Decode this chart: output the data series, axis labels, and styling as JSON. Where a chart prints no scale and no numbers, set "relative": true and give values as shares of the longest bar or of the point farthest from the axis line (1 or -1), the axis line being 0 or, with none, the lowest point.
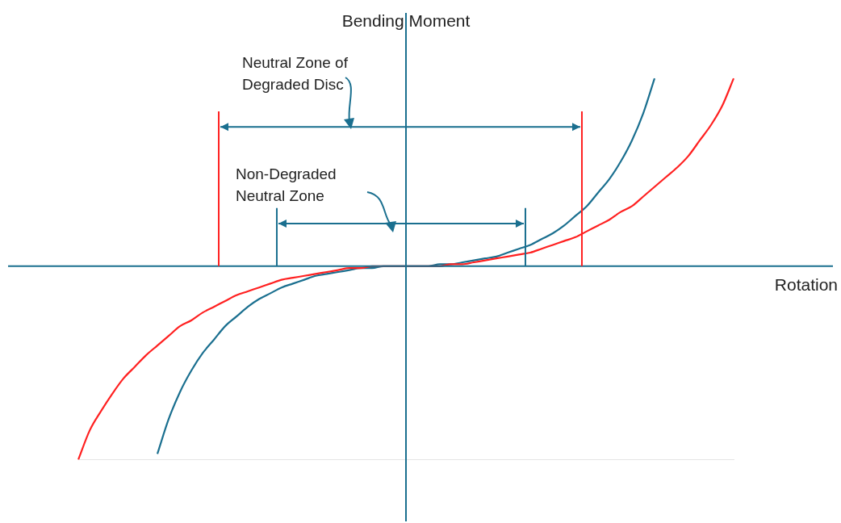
{
  "chart_data": {
    "type": "line",
    "relative": true,
    "xlabel": "Rotation",
    "ylabel": "Bending Moment",
    "legend": false,
    "ref_lines": [
      {
        "axis": "y",
        "value": 0,
        "color": "#1a6f8f"
      }
    ],
    "marker": "none",
    "line_style": "solid",
    "annotations": [
      "Neutral Zone of Degraded Disc",
      "Non-Degraded Neutral Zone"
    ],
    "categories": [
      null,
      null,
      null,
      null,
      null,
      null,
      null,
      null,
      null,
      null,
      null,
      null,
      null,
      null,
      null,
      null,
      null,
      null,
      null,
      null,
      null,
      null,
      null,
      null,
      null,
      null,
      null,
      null,
      null,
      null,
      null,
      null,
      null,
      null,
      null,
      null,
      null,
      null,
      null,
      null,
      null,
      null,
      null,
      null,
      null,
      null,
      null,
      null,
      null,
      null,
      null,
      null,
      null,
      null,
      null,
      null,
      null,
      null,
      null
    ],
    "series": [
      {
        "color": "#ff2020",
        "values": [
          -1,
          -0.85,
          -0.75,
          -0.66,
          -0.58,
          -0.52,
          -0.46,
          -0.41,
          -0.36,
          -0.31,
          -0.28,
          -0.24,
          -0.21,
          -0.18,
          -0.15,
          -0.13,
          -0.11,
          -0.09,
          -0.07,
          -0.06,
          -0.05,
          -0.04,
          -0.03,
          -0.02,
          -0.01,
          -0.01,
          0,
          0,
          0,
          0,
          0,
          0,
          0,
          0.01,
          0.01,
          0.02,
          0.03,
          0.04,
          0.05,
          0.06,
          0.07,
          0.09,
          0.11,
          0.13,
          0.15,
          0.18,
          0.21,
          0.24,
          0.28,
          0.31,
          0.36,
          0.41,
          0.46,
          0.51,
          0.57,
          0.65,
          0.73,
          0.83,
          0.97
        ]
      },
      {
        "color": "#1a6f8f",
        "values": [
          null,
          null,
          null,
          null,
          null,
          null,
          null,
          -0.97,
          -0.79,
          -0.65,
          -0.54,
          -0.45,
          -0.38,
          -0.31,
          -0.26,
          -0.21,
          -0.17,
          -0.14,
          -0.11,
          -0.09,
          -0.07,
          -0.05,
          -0.04,
          -0.03,
          -0.02,
          -0.01,
          -0.01,
          0,
          0,
          0,
          0,
          0,
          0.01,
          0.01,
          0.02,
          0.03,
          0.04,
          0.05,
          0.07,
          0.09,
          0.11,
          0.14,
          0.17,
          0.21,
          0.26,
          0.31,
          0.38,
          0.45,
          0.54,
          0.65,
          0.79,
          0.97,
          null,
          null,
          null,
          null,
          null,
          null,
          null
        ]
      }
    ]
  }
}
